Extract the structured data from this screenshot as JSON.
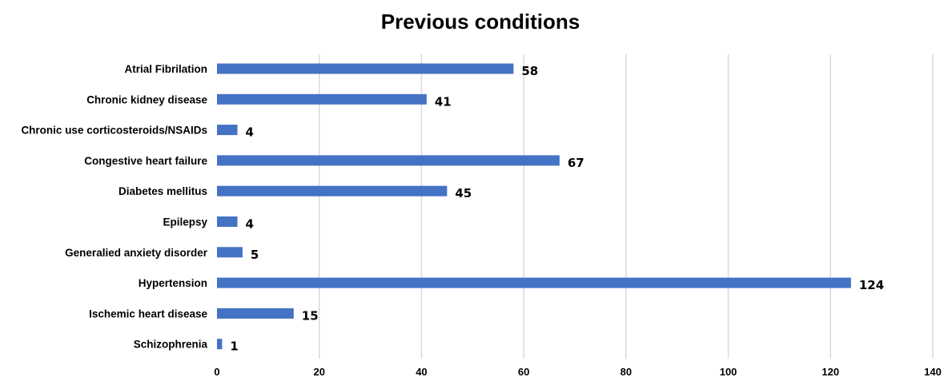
{
  "chart_data": {
    "type": "bar",
    "orientation": "horizontal",
    "title": "Previous conditions",
    "xlabel": "",
    "ylabel": "",
    "categories": [
      "Atrial Fibrilation",
      "Chronic kidney disease",
      "Chronic use corticosteroids/NSAIDs",
      "Congestive heart failure",
      "Diabetes mellitus",
      "Epilepsy",
      "Generalied anxiety disorder",
      "Hypertension",
      "Ischemic heart disease",
      "Schizophrenia"
    ],
    "values": [
      58,
      41,
      4,
      67,
      45,
      4,
      5,
      124,
      15,
      1
    ],
    "xlim": [
      0,
      140
    ],
    "xticks": [
      0,
      20,
      40,
      60,
      80,
      100,
      120,
      140
    ],
    "grid": "vertical",
    "legend": "none",
    "bar_color": "#4472c4",
    "gridline_color": "#d9d9d9"
  }
}
